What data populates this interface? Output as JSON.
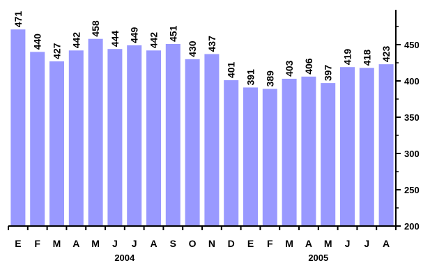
{
  "chart_data": {
    "type": "bar",
    "categories": [
      "E",
      "F",
      "M",
      "A",
      "M",
      "J",
      "J",
      "A",
      "S",
      "O",
      "N",
      "D",
      "E",
      "F",
      "M",
      "A",
      "M",
      "J",
      "J",
      "A"
    ],
    "values": [
      471,
      440,
      427,
      442,
      458,
      444,
      449,
      442,
      451,
      430,
      437,
      401,
      391,
      389,
      403,
      406,
      397,
      419,
      418,
      423
    ],
    "value_labels": [
      "471",
      "440",
      "427",
      "442",
      "458",
      "444",
      "449",
      "442",
      "451",
      "430",
      "437",
      "401",
      "391",
      "389",
      "403",
      "406",
      "397",
      "419",
      "418",
      "423"
    ],
    "groups": [
      {
        "label": "2004",
        "start": 0,
        "end": 11
      },
      {
        "label": "2005",
        "start": 12,
        "end": 19
      }
    ],
    "y_ticks": [
      200,
      250,
      300,
      350,
      400,
      450
    ],
    "y_tick_labels": [
      "200",
      "250",
      "300",
      "350",
      "400",
      "450"
    ],
    "ylim": [
      200,
      500
    ],
    "y_axis_side": "right",
    "grid": false,
    "legend": "none",
    "title": "",
    "xlabel": "",
    "ylabel": ""
  },
  "colors": {
    "bar": "#9999ff",
    "axis": "#000000",
    "text": "#000000"
  }
}
